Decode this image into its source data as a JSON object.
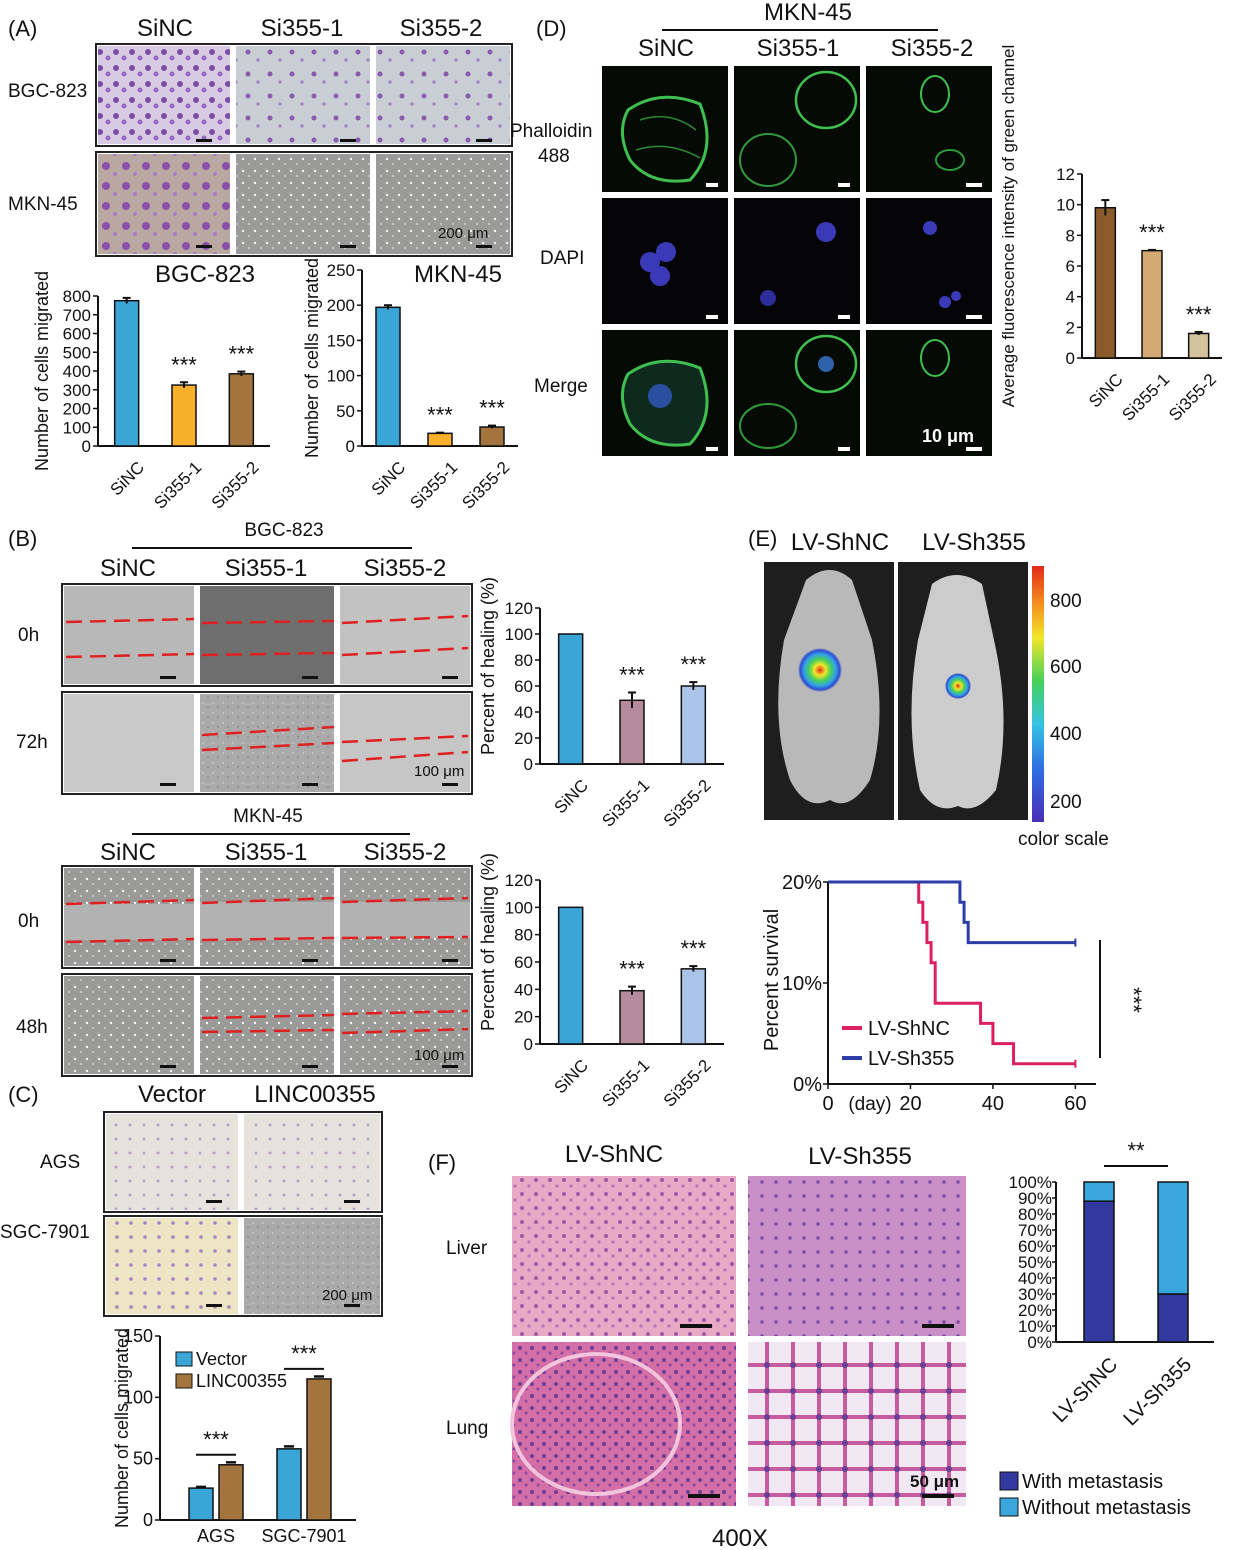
{
  "colors": {
    "blue": "#3aa6d8",
    "orange": "#f6b02c",
    "brown": "#a4743e",
    "mauve": "#b68b9b",
    "lightblue": "#a9c4e8",
    "brown_dark": "#8a5a2b",
    "tan": "#d3a873",
    "beige": "#d5c3a0",
    "crimson": "#dc2063",
    "navy": "#2d3ca7",
    "dark_blue": "#31399f",
    "sky": "#3aa7dc",
    "scale_bar": "#111111",
    "cut_line": "#e02020"
  },
  "panel_A": {
    "label": "(A)",
    "cols": [
      "SiNC",
      "Si355-1",
      "Si355-2"
    ],
    "rows": [
      "BGC-823",
      "MKN-45"
    ],
    "scale_text": "200 μm"
  },
  "panel_B": {
    "label": "(B)",
    "top": {
      "title": "BGC-823",
      "cols": [
        "SiNC",
        "Si355-1",
        "Si355-2"
      ],
      "rows": [
        "0h",
        "72h"
      ],
      "scale_text": "100 μm"
    },
    "bottom": {
      "title": "MKN-45",
      "cols": [
        "SiNC",
        "Si355-1",
        "Si355-2"
      ],
      "rows": [
        "0h",
        "48h"
      ],
      "scale_text": "100 μm"
    }
  },
  "panel_C": {
    "label": "(C)",
    "cols": [
      "Vector",
      "LINC00355"
    ],
    "rows": [
      "AGS",
      "SGC-7901"
    ],
    "scale_text": "200 μm"
  },
  "panel_D": {
    "label": "(D)",
    "title": "MKN-45",
    "cols": [
      "SiNC",
      "Si355-1",
      "Si355-2"
    ],
    "rows": [
      "Phalloidin",
      "488",
      "DAPI",
      "Merge"
    ],
    "scale_text": "10 μm"
  },
  "panel_E": {
    "label": "(E)",
    "cols": [
      "LV-ShNC",
      "LV-Sh355"
    ],
    "colorbar": {
      "ticks": [
        "800",
        "600",
        "400",
        "200"
      ],
      "label": "color scale"
    }
  },
  "panel_F": {
    "label": "(F)",
    "cols": [
      "LV-ShNC",
      "LV-Sh355"
    ],
    "rows": [
      "Liver",
      "Lung"
    ],
    "scale_text": "50 μm",
    "magnification": "400X"
  },
  "chart_data": [
    {
      "id": "A-BGC823",
      "type": "bar",
      "title": "BGC-823",
      "xlabel": "",
      "ylabel": "Number of cells migrated",
      "categories": [
        "SiNC",
        "Si355-1",
        "Si355-2"
      ],
      "values": [
        775,
        325,
        385
      ],
      "errors": [
        15,
        15,
        12
      ],
      "ylim": [
        0,
        800
      ],
      "yticks": [
        "0",
        "100",
        "200",
        "300",
        "400",
        "500",
        "600",
        "700",
        "800"
      ],
      "significance": [
        "",
        "***",
        "***"
      ],
      "colors": [
        "#3aa6d8",
        "#f6b02c",
        "#a4743e"
      ]
    },
    {
      "id": "A-MKN45",
      "type": "bar",
      "title": "MKN-45",
      "xlabel": "",
      "ylabel": "Number of cells migrated",
      "categories": [
        "SiNC",
        "Si355-1",
        "Si355-2"
      ],
      "values": [
        197,
        18,
        27
      ],
      "errors": [
        3,
        1,
        2
      ],
      "ylim": [
        0,
        250
      ],
      "yticks": [
        "0",
        "50",
        "100",
        "150",
        "200",
        "250"
      ],
      "significance": [
        "",
        "***",
        "***"
      ],
      "colors": [
        "#3aa6d8",
        "#f6b02c",
        "#a4743e"
      ]
    },
    {
      "id": "B-BGC823",
      "type": "bar",
      "title": "",
      "xlabel": "",
      "ylabel": "Percent of healing (%)",
      "categories": [
        "SiNC",
        "Si355-1",
        "Si355-2"
      ],
      "values": [
        100,
        49,
        60
      ],
      "errors": [
        0,
        6,
        3
      ],
      "ylim": [
        0,
        120
      ],
      "yticks": [
        "0",
        "20",
        "40",
        "60",
        "80",
        "100",
        "120"
      ],
      "significance": [
        "",
        "***",
        "***"
      ],
      "colors": [
        "#3aa6d8",
        "#b68b9b",
        "#a9c4e8"
      ]
    },
    {
      "id": "B-MKN45",
      "type": "bar",
      "title": "",
      "xlabel": "",
      "ylabel": "Percent of healing (%)",
      "categories": [
        "SiNC",
        "Si355-1",
        "Si355-2"
      ],
      "values": [
        100,
        39,
        55
      ],
      "errors": [
        0,
        3,
        2
      ],
      "ylim": [
        0,
        120
      ],
      "yticks": [
        "0",
        "20",
        "40",
        "60",
        "80",
        "100",
        "120"
      ],
      "significance": [
        "",
        "***",
        "***"
      ],
      "colors": [
        "#3aa6d8",
        "#b68b9b",
        "#a9c4e8"
      ]
    },
    {
      "id": "C",
      "type": "bar",
      "title": "",
      "xlabel": "",
      "ylabel": "Number of cells migrated",
      "categories": [
        "AGS",
        "SGC-7901"
      ],
      "series": [
        {
          "name": "Vector",
          "values": [
            26,
            58
          ],
          "errors": [
            1,
            2
          ],
          "color": "#3aa6d8"
        },
        {
          "name": "LINC00355",
          "values": [
            45,
            115
          ],
          "errors": [
            2,
            2
          ],
          "color": "#a4743e"
        }
      ],
      "ylim": [
        0,
        150
      ],
      "yticks": [
        "0",
        "50",
        "100",
        "150"
      ],
      "significance": [
        "***",
        "***"
      ],
      "legend": "top-left"
    },
    {
      "id": "D",
      "type": "bar",
      "title": "",
      "xlabel": "",
      "ylabel": "Average fluorescence intensity of green channel",
      "categories": [
        "SiNC",
        "Si355-1",
        "Si355-2"
      ],
      "values": [
        9.8,
        7.0,
        1.6
      ],
      "errors": [
        0.5,
        0.05,
        0.1
      ],
      "ylim": [
        0,
        12
      ],
      "yticks": [
        "0",
        "2",
        "4",
        "6",
        "8",
        "10",
        "12"
      ],
      "significance": [
        "",
        "***",
        "***"
      ],
      "colors": [
        "#8a5a2b",
        "#d3a873",
        "#d5c3a0"
      ]
    },
    {
      "id": "E",
      "type": "line",
      "title": "",
      "xlabel": "(day)",
      "ylabel": "Percent survival",
      "xlim": [
        0,
        65
      ],
      "xticks": [
        "0",
        "20",
        "40",
        "60"
      ],
      "ylim": [
        0,
        20
      ],
      "yticks": [
        "0%",
        "10%",
        "20%"
      ],
      "series": [
        {
          "name": "LV-ShNC",
          "color": "#dc2063",
          "x": [
            0,
            21,
            22,
            23,
            24,
            25,
            26,
            33,
            37,
            40,
            45,
            60
          ],
          "y": [
            20,
            20,
            18,
            16,
            14,
            12,
            8,
            8,
            6,
            4,
            2,
            2
          ]
        },
        {
          "name": "LV-Sh355",
          "color": "#2d3ca7",
          "x": [
            0,
            31,
            32,
            33,
            34,
            60
          ],
          "y": [
            20,
            20,
            18,
            16,
            14,
            14
          ]
        }
      ],
      "significance": "***",
      "legend": "bottom-left"
    },
    {
      "id": "F",
      "type": "bar",
      "title": "",
      "xlabel": "",
      "ylabel": "",
      "categories": [
        "LV-ShNC",
        "LV-Sh355"
      ],
      "series": [
        {
          "name": "With metastasis",
          "values": [
            88,
            30
          ],
          "color": "#31399f"
        },
        {
          "name": "Without metastasis",
          "values": [
            12,
            70
          ],
          "color": "#3aa7dc"
        }
      ],
      "stacked": true,
      "ylim": [
        0,
        100
      ],
      "yticks": [
        "0%",
        "10%",
        "20%",
        "30%",
        "40%",
        "50%",
        "60%",
        "70%",
        "80%",
        "90%",
        "100%"
      ],
      "significance": "**",
      "legend": "bottom"
    }
  ]
}
